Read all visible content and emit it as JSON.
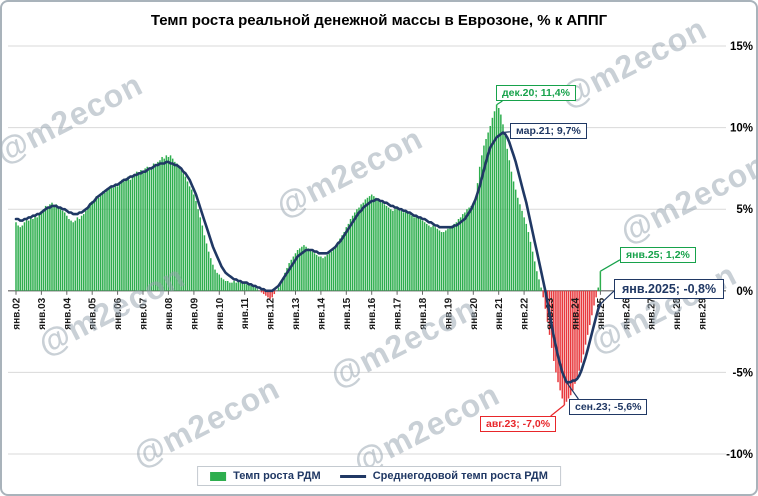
{
  "watermark": "@m2econ",
  "chart_data": {
    "type": "bar",
    "title": "Темп роста реальной денежной массы в Еврозоне, % к АППГ",
    "x_start": "2002-01",
    "x_frequency": "monthly",
    "x_tick_labels": [
      "янв.02",
      "янв.03",
      "янв.04",
      "янв.05",
      "янв.06",
      "янв.07",
      "янв.08",
      "янв.09",
      "янв.10",
      "янв.11",
      "янв.12",
      "янв.13",
      "янв.14",
      "янв.15",
      "янв.16",
      "янв.17",
      "янв.18",
      "янв.19",
      "янв.20",
      "янв.21",
      "янв.22",
      "янв.23",
      "янв.24",
      "янв.25",
      "янв.26",
      "янв.27",
      "янв.28",
      "янв.29"
    ],
    "ylim": [
      -10,
      15
    ],
    "y_ticks": [
      15,
      10,
      5,
      0,
      -5,
      -10
    ],
    "y_tick_labels": [
      "15%",
      "10%",
      "5%",
      "0%",
      "-5%",
      "-10%"
    ],
    "grid": true,
    "legend_position": "bottom",
    "series": [
      {
        "name": "Темп роста РДМ",
        "kind": "bar",
        "color_positive": "#2eae4e",
        "color_negative": "#e8393d",
        "values": [
          4.2,
          4.0,
          3.9,
          4.0,
          4.2,
          4.4,
          4.3,
          4.5,
          4.4,
          4.6,
          4.5,
          4.7,
          4.9,
          5.0,
          5.2,
          5.1,
          5.3,
          5.4,
          5.2,
          5.3,
          5.1,
          5.0,
          4.9,
          4.8,
          4.6,
          4.4,
          4.3,
          4.2,
          4.3,
          4.5,
          4.4,
          4.6,
          4.7,
          4.9,
          5.1,
          5.3,
          5.5,
          5.6,
          5.8,
          5.7,
          5.9,
          6.1,
          6.0,
          6.2,
          6.3,
          6.4,
          6.3,
          6.5,
          6.4,
          6.6,
          6.8,
          6.7,
          6.9,
          7.0,
          6.8,
          7.0,
          7.1,
          7.3,
          7.2,
          7.4,
          7.3,
          7.5,
          7.6,
          7.4,
          7.6,
          7.8,
          7.7,
          7.9,
          8.0,
          8.2,
          8.1,
          8.3,
          8.2,
          8.3,
          8.1,
          7.9,
          7.8,
          7.6,
          7.4,
          7.2,
          7.0,
          6.7,
          6.4,
          6.2,
          5.9,
          5.5,
          5.0,
          4.5,
          4.0,
          3.4,
          2.9,
          2.4,
          2.0,
          1.6,
          1.3,
          1.1,
          1.0,
          0.8,
          0.7,
          0.6,
          0.6,
          0.5,
          0.5,
          0.6,
          0.5,
          0.6,
          0.5,
          0.5,
          0.5,
          0.4,
          0.4,
          0.3,
          0.3,
          0.2,
          0.1,
          0.0,
          -0.1,
          -0.2,
          -0.3,
          -0.4,
          -0.5,
          -0.4,
          -0.2,
          0.0,
          0.2,
          0.5,
          0.8,
          1.1,
          1.4,
          1.7,
          1.9,
          2.1,
          2.3,
          2.5,
          2.6,
          2.7,
          2.8,
          2.7,
          2.6,
          2.5,
          2.4,
          2.3,
          2.2,
          2.1,
          2.1,
          2.0,
          2.1,
          2.2,
          2.3,
          2.4,
          2.6,
          2.8,
          3.0,
          3.2,
          3.4,
          3.6,
          3.9,
          4.1,
          4.4,
          4.6,
          4.8,
          5.0,
          5.1,
          5.3,
          5.4,
          5.6,
          5.7,
          5.8,
          5.9,
          5.8,
          5.7,
          5.6,
          5.5,
          5.4,
          5.3,
          5.2,
          5.1,
          5.0,
          4.9,
          5.0,
          5.1,
          5.0,
          4.9,
          4.8,
          4.9,
          4.8,
          4.7,
          4.6,
          4.5,
          4.6,
          4.5,
          4.4,
          4.3,
          4.2,
          4.1,
          4.0,
          3.9,
          4.0,
          3.9,
          3.8,
          3.7,
          3.6,
          3.6,
          3.7,
          3.8,
          3.9,
          4.0,
          4.1,
          4.2,
          4.4,
          4.5,
          4.7,
          4.8,
          5.0,
          5.1,
          5.2,
          5.4,
          5.7,
          6.6,
          7.6,
          8.3,
          8.9,
          9.3,
          9.7,
          10.1,
          10.6,
          11.0,
          11.4,
          11.2,
          10.8,
          10.2,
          9.5,
          8.7,
          8.0,
          7.3,
          6.7,
          6.2,
          5.7,
          5.3,
          4.9,
          4.5,
          4.1,
          3.6,
          3.0,
          2.4,
          1.8,
          1.2,
          0.7,
          0.2,
          -0.4,
          -1.1,
          -1.9,
          -2.7,
          -3.5,
          -4.3,
          -5.0,
          -5.6,
          -6.1,
          -6.6,
          -7.0,
          -6.8,
          -6.6,
          -6.4,
          -6.1,
          -5.7,
          -5.3,
          -4.9,
          -4.4,
          -3.9,
          -3.3,
          -2.7,
          -2.1,
          -1.5,
          -0.9,
          -0.4,
          0.2,
          1.2
        ]
      },
      {
        "name": "Среднегодовой темп роста РДМ",
        "kind": "line",
        "color": "#203864",
        "values": [
          4.4,
          4.4,
          4.3,
          4.3,
          4.4,
          4.4,
          4.5,
          4.5,
          4.6,
          4.6,
          4.7,
          4.7,
          4.8,
          4.9,
          5.0,
          5.1,
          5.1,
          5.2,
          5.2,
          5.2,
          5.1,
          5.1,
          5.0,
          5.0,
          4.9,
          4.8,
          4.8,
          4.7,
          4.7,
          4.7,
          4.8,
          4.8,
          4.9,
          5.0,
          5.1,
          5.3,
          5.4,
          5.5,
          5.7,
          5.8,
          5.9,
          6.0,
          6.1,
          6.2,
          6.3,
          6.4,
          6.4,
          6.5,
          6.5,
          6.6,
          6.7,
          6.8,
          6.8,
          6.9,
          7.0,
          7.0,
          7.1,
          7.1,
          7.2,
          7.2,
          7.3,
          7.3,
          7.4,
          7.5,
          7.5,
          7.6,
          7.7,
          7.7,
          7.8,
          7.8,
          7.8,
          7.9,
          7.9,
          7.8,
          7.8,
          7.7,
          7.7,
          7.6,
          7.5,
          7.3,
          7.2,
          7.0,
          6.8,
          6.5,
          6.2,
          5.9,
          5.5,
          5.1,
          4.7,
          4.3,
          3.9,
          3.5,
          3.1,
          2.7,
          2.4,
          2.1,
          1.8,
          1.5,
          1.3,
          1.1,
          1.0,
          0.9,
          0.8,
          0.7,
          0.7,
          0.6,
          0.6,
          0.5,
          0.5,
          0.5,
          0.4,
          0.4,
          0.3,
          0.3,
          0.2,
          0.2,
          0.1,
          0.1,
          0.0,
          0.0,
          0.0,
          0.0,
          0.1,
          0.2,
          0.3,
          0.5,
          0.7,
          0.9,
          1.1,
          1.3,
          1.5,
          1.7,
          1.9,
          2.1,
          2.2,
          2.3,
          2.4,
          2.5,
          2.5,
          2.5,
          2.5,
          2.4,
          2.4,
          2.3,
          2.3,
          2.3,
          2.3,
          2.3,
          2.4,
          2.5,
          2.6,
          2.7,
          2.9,
          3.0,
          3.2,
          3.4,
          3.6,
          3.8,
          4.0,
          4.2,
          4.4,
          4.6,
          4.8,
          4.9,
          5.1,
          5.2,
          5.3,
          5.4,
          5.5,
          5.5,
          5.6,
          5.6,
          5.5,
          5.5,
          5.4,
          5.4,
          5.3,
          5.2,
          5.2,
          5.1,
          5.1,
          5.0,
          5.0,
          4.9,
          4.9,
          4.8,
          4.8,
          4.7,
          4.6,
          4.6,
          4.5,
          4.5,
          4.4,
          4.4,
          4.3,
          4.2,
          4.2,
          4.1,
          4.0,
          4.0,
          3.9,
          3.9,
          3.9,
          3.9,
          3.9,
          3.9,
          3.9,
          4.0,
          4.0,
          4.1,
          4.2,
          4.3,
          4.4,
          4.6,
          4.8,
          5.0,
          5.3,
          5.6,
          6.0,
          6.4,
          6.9,
          7.4,
          7.9,
          8.4,
          8.8,
          9.0,
          9.2,
          9.4,
          9.5,
          9.6,
          9.7,
          9.6,
          9.4,
          9.1,
          8.7,
          8.3,
          7.9,
          7.4,
          6.9,
          6.4,
          5.9,
          5.4,
          4.8,
          4.2,
          3.6,
          3.0,
          2.4,
          1.8,
          1.2,
          0.6,
          0.0,
          -0.7,
          -1.4,
          -2.1,
          -2.8,
          -3.4,
          -4.0,
          -4.5,
          -5.0,
          -5.3,
          -5.6,
          -5.6,
          -5.6,
          -5.5,
          -5.5,
          -5.4,
          -5.2,
          -4.9,
          -4.5,
          -4.1,
          -3.6,
          -3.1,
          -2.6,
          -2.1,
          -1.6,
          -1.1,
          -0.8
        ]
      }
    ],
    "annotations": [
      {
        "id": "bar-peak",
        "text": "дек.20; 11,4%",
        "date": "2020-12",
        "value": 11.4,
        "series": "bar",
        "color": "#17a24b"
      },
      {
        "id": "line-peak",
        "text": "мар.21; 9,7%",
        "date": "2021-03",
        "value": 9.7,
        "series": "line",
        "color": "#203864"
      },
      {
        "id": "bar-last",
        "text": "янв.25; 1,2%",
        "date": "2025-01",
        "value": 1.2,
        "series": "bar",
        "color": "#17a24b"
      },
      {
        "id": "line-last",
        "text": "янв.2025; -0,8%",
        "date": "2025-01",
        "value": -0.8,
        "series": "line",
        "color": "#203864",
        "big": true
      },
      {
        "id": "bar-min",
        "text": "авг.23; -7,0%",
        "date": "2023-08",
        "value": -7.0,
        "series": "bar",
        "color": "#e8262a"
      },
      {
        "id": "line-min",
        "text": "сен.23; -5,6%",
        "date": "2023-09",
        "value": -5.6,
        "series": "line",
        "color": "#203864"
      }
    ]
  }
}
